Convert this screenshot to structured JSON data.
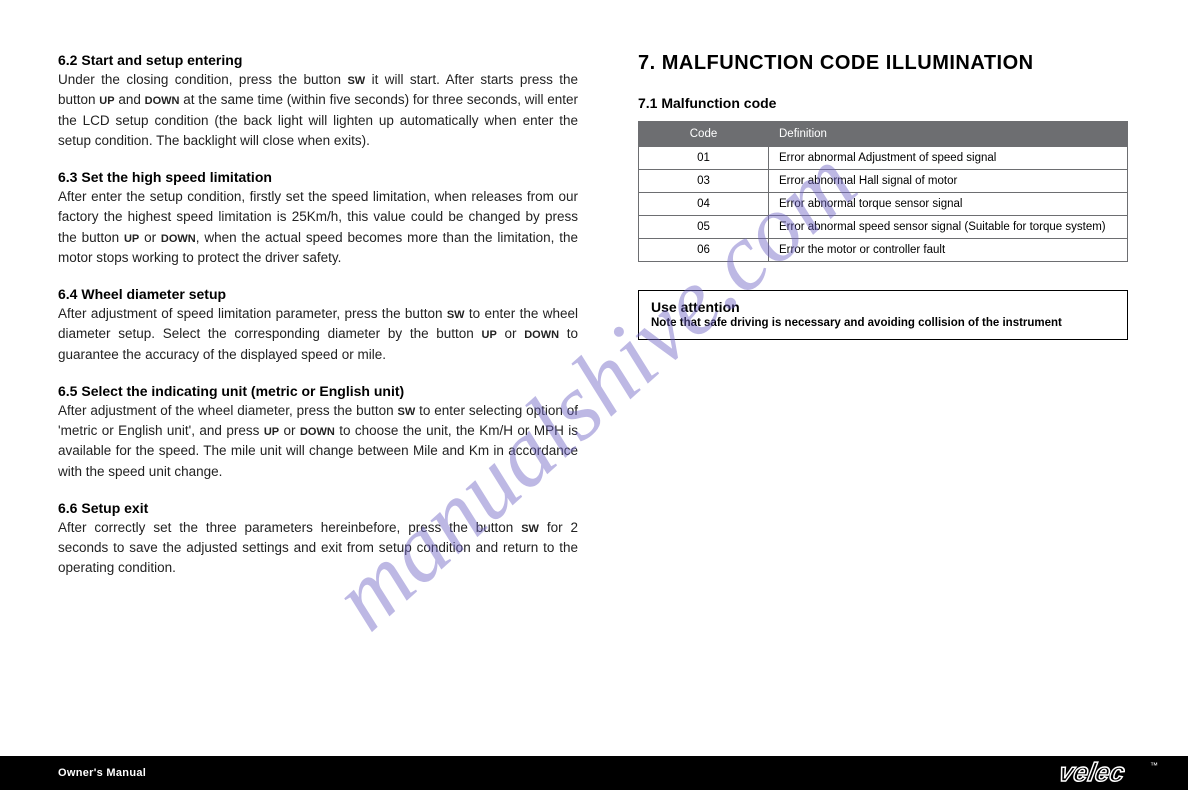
{
  "watermark": "manualshive.com",
  "left": {
    "s62_title": "6.2 Start and setup entering",
    "s62_body_a": "Under the closing condition, press the button ",
    "s62_kw_sw": "SW",
    "s62_body_b": " it will start. After starts press the button ",
    "s62_kw_up": "UP",
    "s62_body_c": " and ",
    "s62_kw_down": "DOWN",
    "s62_body_d": " at the same time (within five seconds) for three seconds, will enter the LCD setup condition (the back light will lighten up automatically when enter the setup condition. The backlight will close when exits).",
    "s63_title": "6.3 Set the high speed limitation",
    "s63_body_a": "After enter the setup condition, firstly set the speed limitation, when releases from our factory the highest speed limitation is 25Km/h, this value could be changed by press the button ",
    "s63_kw_up": "UP",
    "s63_body_b": " or ",
    "s63_kw_down": "DOWN",
    "s63_body_c": ", when the actual speed becomes more than the limitation, the motor stops working to protect the driver safety.",
    "s64_title": "6.4 Wheel diameter setup",
    "s64_body_a": "After adjustment of speed limitation parameter, press the button ",
    "s64_kw_sw": "SW",
    "s64_body_b": " to enter the wheel diameter setup. Select the corresponding diameter by the button ",
    "s64_kw_up": "UP",
    "s64_body_c": " or ",
    "s64_kw_down": "DOWN",
    "s64_body_d": " to guarantee the accuracy of the displayed speed or mile.",
    "s65_title": "6.5 Select the indicating unit (metric or English unit)",
    "s65_body_a": "After adjustment of the wheel diameter, press the button ",
    "s65_kw_sw": "SW",
    "s65_body_b": " to enter selecting option of 'metric or English unit', and press ",
    "s65_kw_up": "UP",
    "s65_body_c": " or ",
    "s65_kw_down": "DOWN",
    "s65_body_d": " to choose the unit, the Km/H or MPH is available for the speed. The mile unit will change between Mile and Km in accordance with the speed unit change.",
    "s66_title": "6.6 Setup exit",
    "s66_body_a": "After correctly set the three parameters hereinbefore, press the button ",
    "s66_kw_sw": "SW",
    "s66_body_b": " for 2 seconds to save the adjusted settings and exit from setup condition and return to the operating condition."
  },
  "right": {
    "heading": "7. MALFUNCTION CODE ILLUMINATION",
    "subheading": "7.1 Malfunction code",
    "table": {
      "header_code": "Code",
      "header_def": "Definition",
      "rows": [
        {
          "code": "01",
          "def": "Error abnormal Adjustment of speed signal"
        },
        {
          "code": "03",
          "def": "Error abnormal Hall signal of motor"
        },
        {
          "code": "04",
          "def": "Error abnormal torque sensor signal"
        },
        {
          "code": "05",
          "def": "Error abnormal speed sensor signal (Suitable for torque system)"
        },
        {
          "code": "06",
          "def": "Error the motor or controller fault"
        }
      ]
    },
    "attention_title": "Use attention",
    "attention_body": "Note that safe driving is necessary and avoiding collision of the instrument"
  },
  "footer": {
    "label": "Owner's Manual",
    "logo": "velec"
  },
  "colors": {
    "table_header_bg": "#6d6e71",
    "watermark_color": "rgba(109,97,196,0.45)",
    "footer_bg": "#000000"
  }
}
